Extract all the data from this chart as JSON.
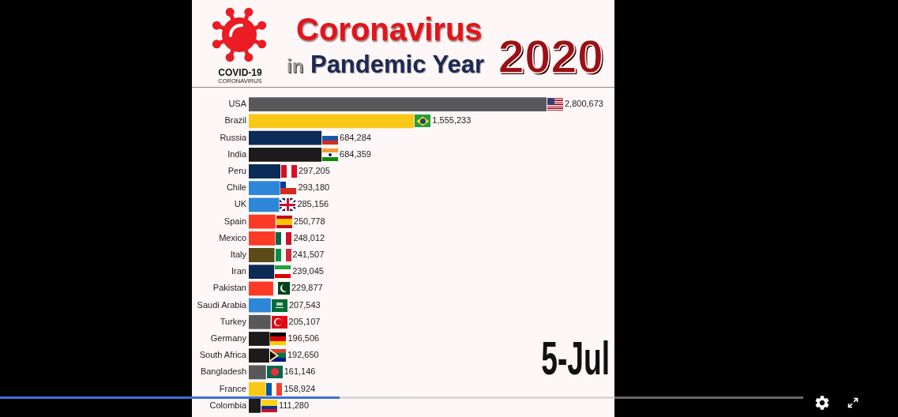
{
  "chart_data": {
    "type": "bar",
    "orientation": "horizontal",
    "title": "Coronavirus in Pandemic Year 2020",
    "annotations": [
      "5-Jul",
      "COVID-19",
      "CORONAVIRUS"
    ],
    "categories": [
      "USA",
      "Brazil",
      "Russia",
      "India",
      "Peru",
      "Chile",
      "UK",
      "Spain",
      "Mexico",
      "Italy",
      "Iran",
      "Pakistan",
      "Saudi Arabia",
      "Turkey",
      "Germany",
      "South Africa",
      "Bangladesh",
      "France",
      "Colombia"
    ],
    "values": [
      2800673,
      1555233,
      684284,
      684359,
      297205,
      293180,
      285156,
      250778,
      248012,
      241507,
      239045,
      229877,
      207543,
      205107,
      196506,
      192650,
      161146,
      158924,
      111280
    ],
    "value_labels": [
      "2,800,673",
      "1,555,233",
      "684,284",
      "684,359",
      "297,205",
      "293,180",
      "285,156",
      "250,778",
      "248,012",
      "241,507",
      "239,045",
      "229,877",
      "207,543",
      "205,107",
      "196,506",
      "192,650",
      "161,146",
      "158,924",
      "111,280"
    ],
    "colors": [
      "#58585a",
      "#f9c816",
      "#0d2b57",
      "#1c1a1a",
      "#0d2b57",
      "#2d86d8",
      "#2d86d8",
      "#fd3a26",
      "#fd3a26",
      "#5c4a19",
      "#0d2b57",
      "#fd3a26",
      "#2d86d8",
      "#58585a",
      "#1c1a1a",
      "#1c1a1a",
      "#58585a",
      "#f9c816",
      "#1c1a1a"
    ],
    "tick_labels": "y"
  }
}
